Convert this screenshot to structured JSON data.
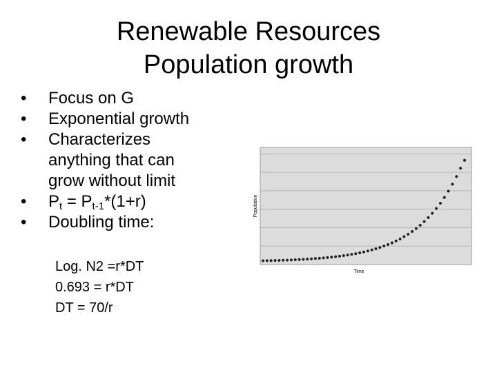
{
  "title": {
    "line1": "Renewable Resources",
    "line2": "Population growth"
  },
  "bullets": [
    {
      "text": "Focus on G"
    },
    {
      "text": "Exponential growth"
    },
    {
      "lines": [
        "Characterizes",
        "anything that can",
        "grow without limit"
      ]
    },
    {
      "p": "P",
      "sub1": "t",
      "mid": " = P",
      "sub2": "t-1",
      "tail": "*(1+r)"
    },
    {
      "text": "Doubling time:"
    }
  ],
  "sub_items": [
    "Log. N2 =r*DT",
    "0.693 = r*DT",
    "DT = 70/r"
  ],
  "bullet_glyph": "•",
  "chart_data": {
    "type": "scatter",
    "title": "",
    "xlabel": "Time",
    "ylabel": "Population",
    "x_ticks": [],
    "y_ticks": [],
    "grid": true,
    "gridlines_y": 6,
    "x": [
      0,
      2,
      4,
      6,
      8,
      10,
      12,
      14,
      16,
      18,
      20,
      22,
      24,
      26,
      28,
      30,
      32,
      34,
      36,
      38,
      40,
      42,
      44,
      46,
      48,
      50,
      52,
      54,
      56,
      58,
      60,
      62,
      64,
      66,
      68,
      70,
      72,
      74,
      76,
      78,
      80,
      82,
      84,
      86,
      88,
      90,
      92,
      94,
      96,
      98,
      100
    ],
    "y": [
      0.01,
      0.011,
      0.012,
      0.013,
      0.014,
      0.015,
      0.016,
      0.018,
      0.02,
      0.022,
      0.024,
      0.026,
      0.029,
      0.032,
      0.035,
      0.038,
      0.042,
      0.046,
      0.05,
      0.055,
      0.06,
      0.066,
      0.073,
      0.08,
      0.088,
      0.097,
      0.106,
      0.117,
      0.128,
      0.141,
      0.155,
      0.17,
      0.187,
      0.205,
      0.225,
      0.248,
      0.272,
      0.299,
      0.328,
      0.36,
      0.396,
      0.435,
      0.478,
      0.525,
      0.577,
      0.634,
      0.696,
      0.765,
      0.84,
      0.923,
      1.0
    ],
    "xlim": [
      0,
      100
    ],
    "ylim": [
      0,
      1.1
    ],
    "colors": {
      "plot_bg": "#dcdcdc",
      "grid": "#b5b5b5",
      "points": "#222222",
      "frame": "#999999"
    }
  }
}
